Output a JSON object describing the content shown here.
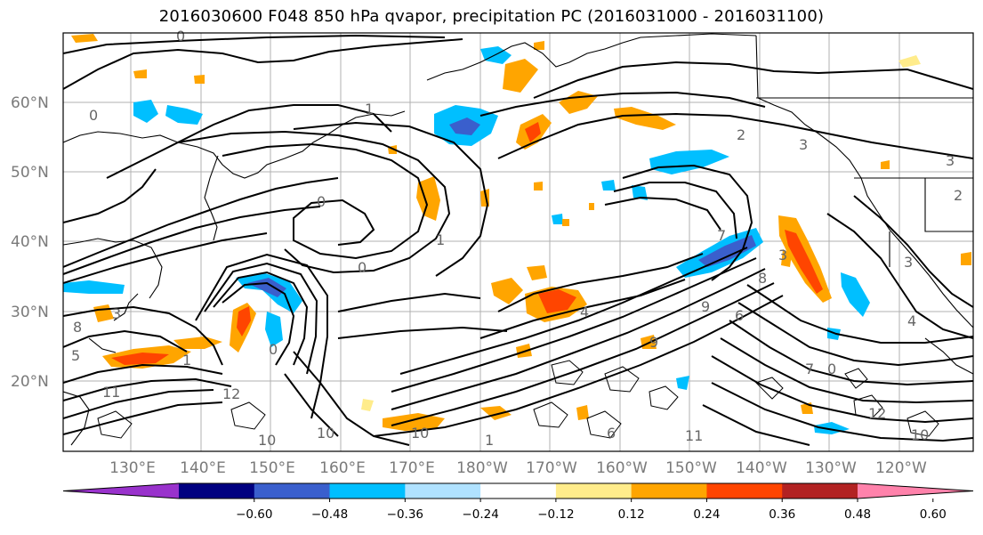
{
  "title": "2016030600 F048 850 hPa qvapor, precipitation PC (2016031000 - 2016031100)",
  "map": {
    "lat_labels": [
      "60°N",
      "50°N",
      "40°N",
      "30°N",
      "20°N"
    ],
    "lon_labels": [
      "130°E",
      "140°E",
      "150°E",
      "160°E",
      "170°E",
      "180°W",
      "170°W",
      "160°W",
      "150°W",
      "140°W",
      "130°W",
      "120°W"
    ],
    "contour_labels": [
      "0",
      "1",
      "0",
      "0",
      "1",
      "0",
      "2",
      "3",
      "3",
      "2",
      "3",
      "4",
      "3",
      "8",
      "9",
      "7",
      "6",
      "4",
      "3",
      "8",
      "0",
      "11",
      "12",
      "10",
      "9",
      "10",
      "11",
      "1",
      "12",
      "10",
      "7",
      "0",
      "6",
      "5",
      "10",
      "1"
    ]
  },
  "colorbar": {
    "colors": [
      "#9932CC",
      "#000080",
      "#3A5FCD",
      "#00BFFF",
      "#B0E2FF",
      "#FFFFFF",
      "#FFEC8B",
      "#FFA500",
      "#FF4500",
      "#B22222",
      "#FF82AB"
    ],
    "tick_labels": [
      "−0.60",
      "−0.48",
      "−0.36",
      "−0.24",
      "−0.12",
      "0.12",
      "0.24",
      "0.36",
      "0.48",
      "0.60"
    ]
  }
}
